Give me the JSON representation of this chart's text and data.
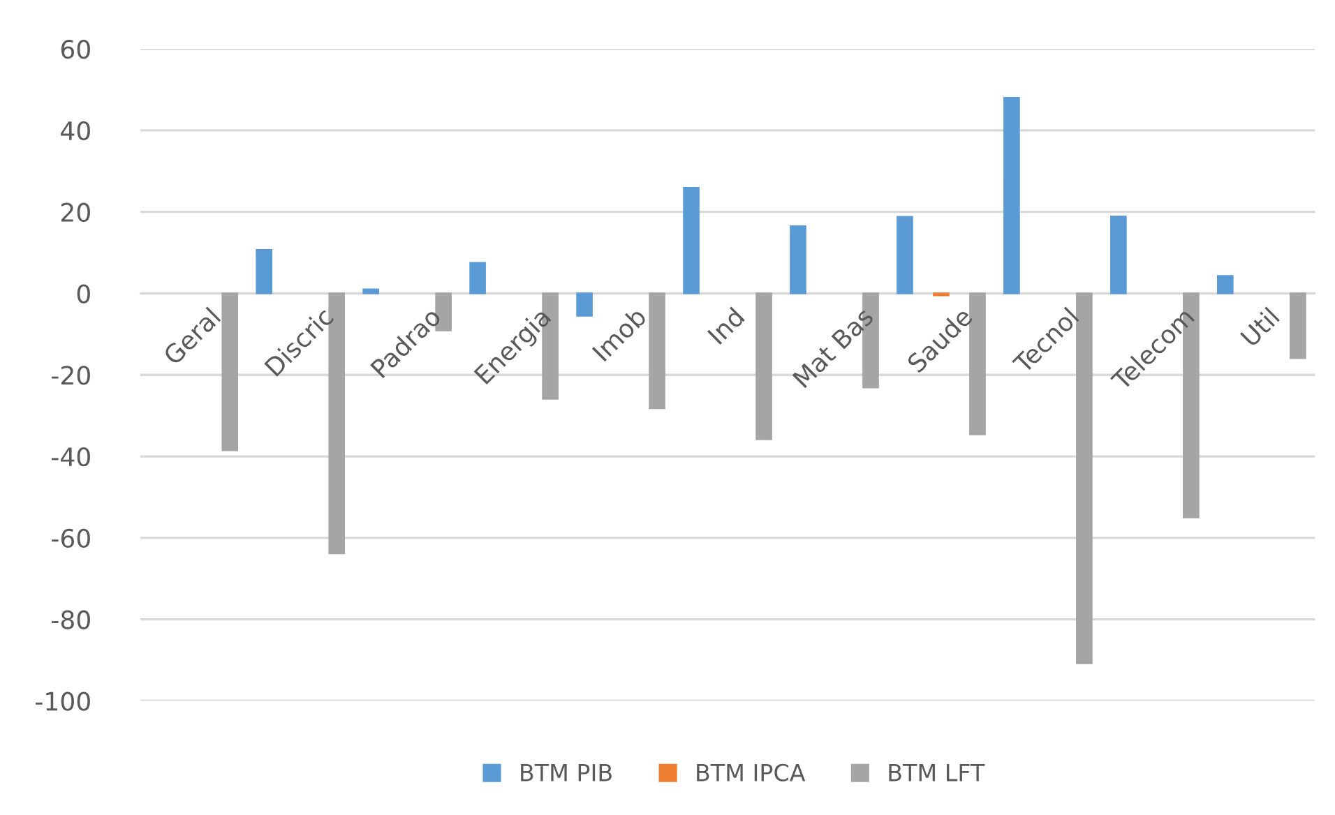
{
  "chart_data": {
    "type": "bar",
    "categories": [
      "Geral",
      "Discric",
      "Padrao",
      "Energia",
      "Imob",
      "Ind",
      "Mat Bas",
      "Saude",
      "Tecnol",
      "Telecom",
      "Util"
    ],
    "series": [
      {
        "name": "BTM PIB",
        "color": "#5b9bd5",
        "values": [
          null,
          10.7,
          1.0,
          7.5,
          -5.5,
          25.9,
          16.5,
          18.8,
          48.0,
          18.9,
          4.3
        ]
      },
      {
        "name": "BTM IPCA",
        "color": "#ed7d31",
        "values": [
          null,
          null,
          null,
          null,
          null,
          null,
          null,
          -0.5,
          null,
          null,
          null
        ]
      },
      {
        "name": "BTM LFT",
        "color": "#a5a5a5",
        "values": [
          -38.5,
          -63.8,
          -9.1,
          -25.9,
          -28.2,
          -35.8,
          -23.1,
          -34.6,
          -90.8,
          -55.0,
          -15.9
        ]
      }
    ],
    "ylim": [
      -100,
      60
    ],
    "yticks": [
      -100,
      -80,
      -60,
      -40,
      -20,
      0,
      20,
      40,
      60
    ],
    "grid": "y",
    "legend": "bottom"
  }
}
